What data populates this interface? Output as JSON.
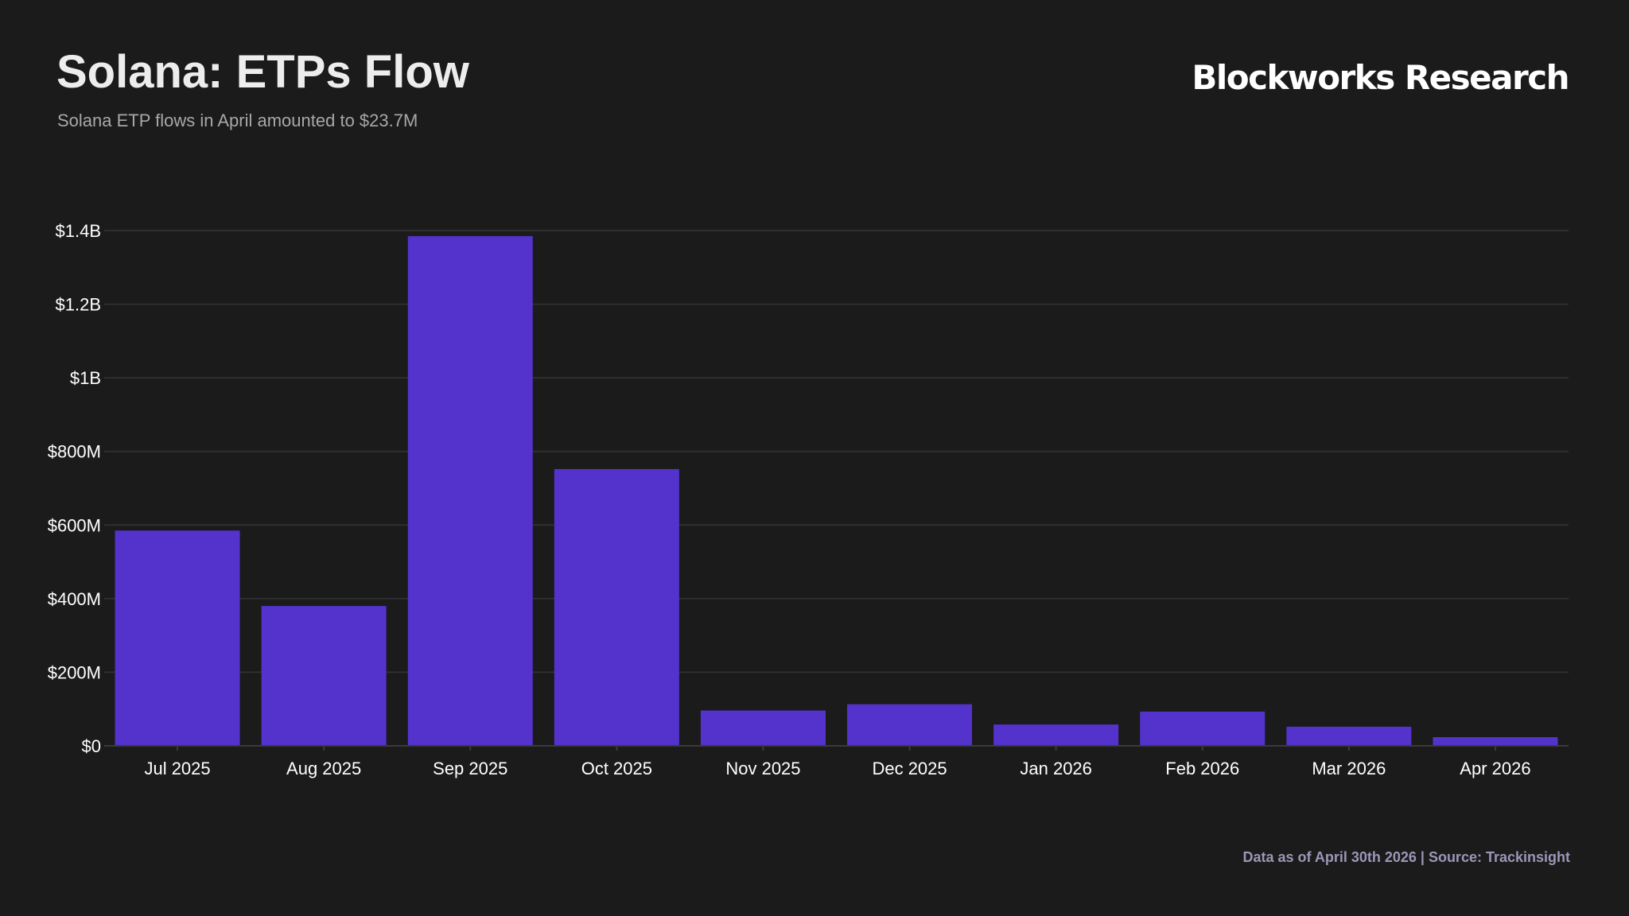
{
  "header": {
    "title": "Solana: ETPs Flow",
    "subtitle": "Solana ETP flows in April amounted to $23.7M",
    "brand": "Blockworks Research"
  },
  "footer": {
    "source": "Data as of April 30th 2026 | Source: Trackinsight"
  },
  "colors": {
    "background": "#1b1b1b",
    "bar": "#5433cc",
    "grid": "#2f2f2f"
  },
  "chart_data": {
    "type": "bar",
    "categories": [
      "Jul 2025",
      "Aug 2025",
      "Sep 2025",
      "Oct 2025",
      "Nov 2025",
      "Dec 2025",
      "Jan 2026",
      "Feb 2026",
      "Mar 2026",
      "Apr 2026"
    ],
    "values": [
      585000000,
      380000000,
      1385000000,
      752000000,
      96000000,
      113000000,
      58000000,
      93000000,
      52000000,
      23700000
    ],
    "ylim": [
      0,
      1400000000
    ],
    "yticks": [
      {
        "value": 0,
        "label": "$0"
      },
      {
        "value": 200000000,
        "label": "$200M"
      },
      {
        "value": 400000000,
        "label": "$400M"
      },
      {
        "value": 600000000,
        "label": "$600M"
      },
      {
        "value": 800000000,
        "label": "$800M"
      },
      {
        "value": 1000000000,
        "label": "$1B"
      },
      {
        "value": 1200000000,
        "label": "$1.2B"
      },
      {
        "value": 1400000000,
        "label": "$1.4B"
      }
    ],
    "grid": true,
    "legend": "none"
  }
}
